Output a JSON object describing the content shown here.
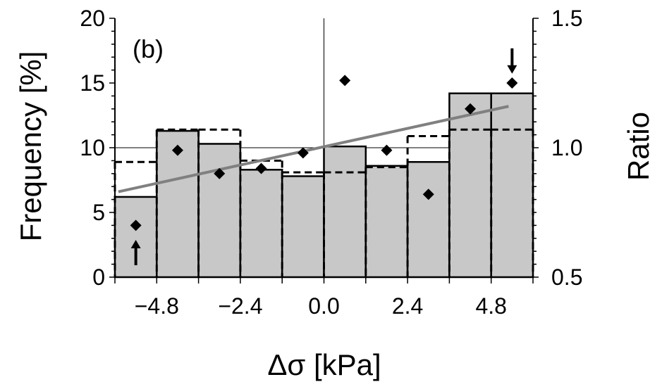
{
  "chart_data": {
    "type": "bar",
    "panel_label": "(b)",
    "xlabel": "Δσ [kPa]",
    "ylabel_left": "Frequency [%]",
    "ylabel_right": "Ratio",
    "xlim": [
      -6.0,
      6.0
    ],
    "ylim_left": [
      0,
      20
    ],
    "ylim_right": [
      0.5,
      1.5
    ],
    "x_ticks": [
      -4.8,
      -2.4,
      0.0,
      2.4,
      4.8
    ],
    "x_tick_labels": [
      "−4.8",
      "−2.4",
      "0.0",
      "2.4",
      "4.8"
    ],
    "y_ticks_left": [
      0,
      5,
      10,
      15,
      20
    ],
    "y_tick_labels_left": [
      "0",
      "5",
      "10",
      "15",
      "20"
    ],
    "y_ticks_right": [
      0.5,
      1.0,
      1.5
    ],
    "y_tick_labels_right": [
      "0.5",
      "1.0",
      "1.5"
    ],
    "grid": "reference lines at x = 0 and y = 10 only",
    "bar_edges": [
      -6.0,
      -4.8,
      -3.6,
      -2.4,
      -1.2,
      0.0,
      1.2,
      2.4,
      3.6,
      4.8,
      6.0
    ],
    "series": [
      {
        "style": "gray filled bars",
        "values": [
          6.2,
          11.3,
          10.3,
          8.3,
          7.8,
          10.1,
          8.6,
          8.9,
          14.2,
          14.2
        ]
      },
      {
        "style": "dashed outline bars",
        "values": [
          8.9,
          11.4,
          11.4,
          9.0,
          8.1,
          8.1,
          8.5,
          10.9,
          11.4,
          11.4
        ]
      },
      {
        "style": "black diamonds (ratio, right axis)",
        "x": [
          -5.4,
          -4.2,
          -3.0,
          -1.8,
          -0.6,
          0.6,
          1.8,
          3.0,
          4.2,
          5.4
        ],
        "values": [
          0.7,
          0.99,
          0.9,
          0.92,
          0.98,
          1.26,
          0.99,
          0.82,
          1.15,
          1.25
        ]
      },
      {
        "style": "gray regression line (ratio, right axis)",
        "x": [
          -5.9,
          5.3
        ],
        "values": [
          0.83,
          1.16
        ]
      }
    ],
    "annotations": [
      {
        "symbol": "↑",
        "x": -5.4,
        "y_left": 1.9
      },
      {
        "symbol": "↓",
        "x": 5.4,
        "y_left": 16.7
      }
    ],
    "colors": {
      "bar_fill": "#c8c8c8",
      "bar_stroke": "#000000",
      "dashed": "#000000",
      "marker": "#000000",
      "trend": "#808080"
    }
  }
}
